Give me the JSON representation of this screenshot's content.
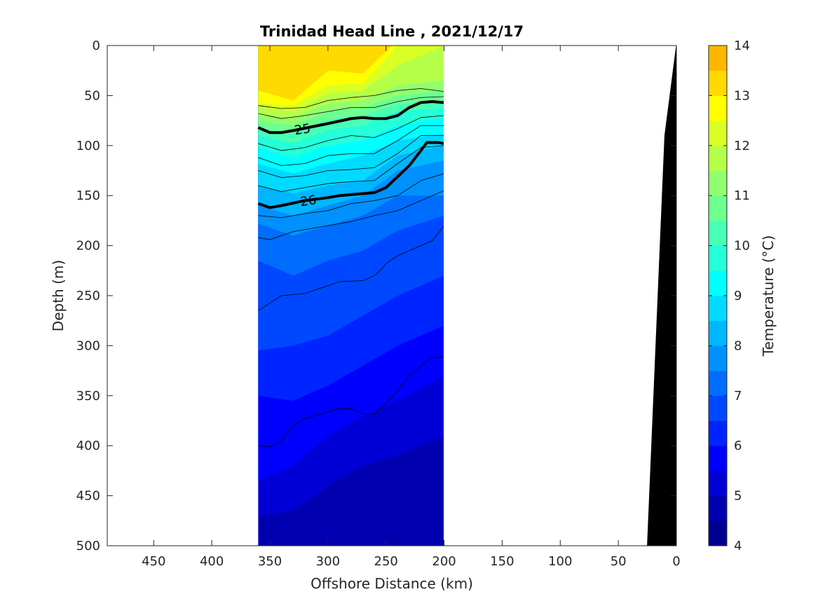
{
  "chart_data": {
    "type": "heatmap",
    "title": "Trinidad Head Line , 2021/12/17",
    "xlabel": "Offshore Distance (km)",
    "ylabel": "Depth (m)",
    "xlim": [
      490,
      0
    ],
    "ylim": [
      0,
      500
    ],
    "x_reversed": true,
    "y_reversed": true,
    "x_ticks": [
      450,
      400,
      350,
      300,
      250,
      200,
      150,
      100,
      50,
      0
    ],
    "y_ticks": [
      0,
      50,
      100,
      150,
      200,
      250,
      300,
      350,
      400,
      450,
      500
    ],
    "grid": false,
    "data_extent_x": [
      360,
      200
    ],
    "colorbar": {
      "label": "Temperature (°C)",
      "range": [
        4,
        14
      ],
      "ticks": [
        4,
        5,
        6,
        7,
        8,
        9,
        10,
        11,
        12,
        13,
        14
      ],
      "step": 0.5,
      "colors": [
        "#000090",
        "#0000b0",
        "#0000d6",
        "#0000ff",
        "#0024ff",
        "#0048ff",
        "#006dff",
        "#0091ff",
        "#00b6ff",
        "#00daff",
        "#00ffff",
        "#24ffda",
        "#48ffb6",
        "#6dff91",
        "#91ff6d",
        "#b6ff48",
        "#daff24",
        "#ffff00",
        "#ffda00",
        "#ffb600",
        "#ff9100",
        "#ff6d00",
        "#ff4800",
        "#ff2400",
        "#ff0000",
        "#da0000",
        "#b60000"
      ]
    },
    "stations": [
      {
        "x": 360,
        "isotherm_depths": {
          "13": 45,
          "12.5": 58,
          "12": 62,
          "11.5": 70,
          "11": 76,
          "10.5": 82,
          "10": 90,
          "9.5": 102,
          "9": 118,
          "8.5": 140,
          "8": 160,
          "7.5": 178,
          "7": 215,
          "6.5": 305,
          "6": 350,
          "5.5": 435,
          "5": 470
        }
      },
      {
        "x": 330,
        "isotherm_depths": {
          "13": 55,
          "12.5": 60,
          "12": 66,
          "11.5": 72,
          "11": 80,
          "10.5": 88,
          "10": 98,
          "9.5": 112,
          "9": 128,
          "8.5": 148,
          "8": 170,
          "7.5": 190,
          "7": 230,
          "6.5": 300,
          "6": 355,
          "5.5": 420,
          "5": 465
        }
      },
      {
        "x": 300,
        "isotherm_depths": {
          "13": 25,
          "12.5": 40,
          "12": 48,
          "11.5": 58,
          "11": 66,
          "10.5": 74,
          "10": 84,
          "9.5": 100,
          "9": 118,
          "8.5": 140,
          "8": 160,
          "7.5": 180,
          "7": 215,
          "6.5": 290,
          "6": 340,
          "5.5": 390,
          "5": 440
        }
      },
      {
        "x": 270,
        "isotherm_depths": {
          "13": 28,
          "12.5": 38,
          "12": 45,
          "11.5": 55,
          "11": 62,
          "10.5": 70,
          "10": 80,
          "9.5": 95,
          "9": 110,
          "8.5": 135,
          "8": 150,
          "7.5": 170,
          "7": 205,
          "6.5": 270,
          "6": 320,
          "5.5": 370,
          "5": 420
        }
      },
      {
        "x": 240,
        "isotherm_depths": {
          "13": -5,
          "12.5": 0,
          "12": 20,
          "11.5": 40,
          "11": 50,
          "10.5": 58,
          "10": 66,
          "9.5": 80,
          "9": 95,
          "8.5": 110,
          "8": 125,
          "7.5": 150,
          "7": 185,
          "6.5": 250,
          "6": 300,
          "5.5": 355,
          "5": 410
        }
      },
      {
        "x": 200,
        "isotherm_depths": {
          "13": -5,
          "12.5": -2,
          "12": 0,
          "11.5": 35,
          "11": 45,
          "10.5": 55,
          "10": 62,
          "9.5": 72,
          "9": 88,
          "8.5": 100,
          "8": 115,
          "7.5": 150,
          "7": 170,
          "6.5": 230,
          "6": 280,
          "5.5": 330,
          "5": 390
        }
      }
    ],
    "contours": [
      {
        "level": 24.5,
        "points": [
          [
            360,
            60
          ],
          [
            340,
            63
          ],
          [
            320,
            62
          ],
          [
            300,
            55
          ],
          [
            280,
            52
          ],
          [
            260,
            50
          ],
          [
            240,
            45
          ],
          [
            220,
            43
          ],
          [
            200,
            46
          ]
        ]
      },
      {
        "level": 24.75,
        "points": [
          [
            360,
            68
          ],
          [
            340,
            73
          ],
          [
            320,
            70
          ],
          [
            300,
            66
          ],
          [
            280,
            62
          ],
          [
            260,
            62
          ],
          [
            240,
            56
          ],
          [
            220,
            52
          ],
          [
            200,
            51
          ]
        ]
      },
      {
        "level": 25,
        "label": "25",
        "bold": true,
        "points": [
          [
            360,
            82
          ],
          [
            350,
            87
          ],
          [
            340,
            87
          ],
          [
            330,
            85
          ],
          [
            300,
            78
          ],
          [
            280,
            73
          ],
          [
            270,
            72
          ],
          [
            260,
            73
          ],
          [
            250,
            73
          ],
          [
            240,
            70
          ],
          [
            230,
            62
          ],
          [
            220,
            57
          ],
          [
            210,
            56
          ],
          [
            200,
            57
          ]
        ]
      },
      {
        "level": 25.2,
        "points": [
          [
            360,
            98
          ],
          [
            340,
            105
          ],
          [
            320,
            102
          ],
          [
            300,
            95
          ],
          [
            280,
            90
          ],
          [
            260,
            92
          ],
          [
            240,
            83
          ],
          [
            220,
            72
          ],
          [
            200,
            70
          ]
        ]
      },
      {
        "level": 25.4,
        "points": [
          [
            360,
            112
          ],
          [
            340,
            120
          ],
          [
            320,
            118
          ],
          [
            300,
            110
          ],
          [
            280,
            108
          ],
          [
            260,
            108
          ],
          [
            240,
            95
          ],
          [
            220,
            80
          ],
          [
            200,
            80
          ]
        ]
      },
      {
        "level": 25.6,
        "points": [
          [
            360,
            125
          ],
          [
            340,
            132
          ],
          [
            320,
            130
          ],
          [
            300,
            125
          ],
          [
            280,
            124
          ],
          [
            260,
            122
          ],
          [
            240,
            108
          ],
          [
            220,
            90
          ],
          [
            200,
            90
          ]
        ]
      },
      {
        "level": 25.8,
        "points": [
          [
            360,
            140
          ],
          [
            340,
            146
          ],
          [
            320,
            142
          ],
          [
            300,
            138
          ],
          [
            280,
            136
          ],
          [
            260,
            135
          ],
          [
            240,
            118
          ],
          [
            220,
            102
          ],
          [
            200,
            100
          ]
        ]
      },
      {
        "level": 26,
        "label": "26",
        "bold": true,
        "points": [
          [
            360,
            158
          ],
          [
            350,
            162
          ],
          [
            340,
            160
          ],
          [
            320,
            155
          ],
          [
            300,
            152
          ],
          [
            290,
            150
          ],
          [
            270,
            148
          ],
          [
            260,
            147
          ],
          [
            250,
            142
          ],
          [
            240,
            131
          ],
          [
            230,
            120
          ],
          [
            220,
            105
          ],
          [
            215,
            97
          ],
          [
            205,
            97
          ],
          [
            200,
            98
          ]
        ]
      },
      {
        "level": 26.2,
        "points": [
          [
            360,
            170
          ],
          [
            340,
            172
          ],
          [
            320,
            168
          ],
          [
            300,
            165
          ],
          [
            280,
            158
          ],
          [
            260,
            155
          ],
          [
            240,
            150
          ],
          [
            220,
            135
          ],
          [
            200,
            128
          ]
        ]
      },
      {
        "level": 26.4,
        "points": [
          [
            360,
            192
          ],
          [
            350,
            194
          ],
          [
            330,
            186
          ],
          [
            300,
            180
          ],
          [
            280,
            176
          ],
          [
            260,
            170
          ],
          [
            240,
            165
          ],
          [
            220,
            155
          ],
          [
            200,
            145
          ]
        ]
      },
      {
        "level": 26.5,
        "points": [
          [
            360,
            265
          ],
          [
            340,
            250
          ],
          [
            320,
            248
          ],
          [
            300,
            240
          ],
          [
            290,
            236
          ],
          [
            270,
            235
          ],
          [
            260,
            230
          ],
          [
            255,
            225
          ],
          [
            250,
            218
          ],
          [
            240,
            210
          ],
          [
            220,
            200
          ],
          [
            210,
            195
          ],
          [
            200,
            180
          ]
        ]
      },
      {
        "level": 26.7,
        "points": [
          [
            360,
            400
          ],
          [
            350,
            401
          ],
          [
            340,
            395
          ],
          [
            330,
            380
          ],
          [
            320,
            373
          ],
          [
            300,
            366
          ],
          [
            290,
            363
          ],
          [
            280,
            363
          ],
          [
            270,
            368
          ],
          [
            260,
            368
          ],
          [
            250,
            358
          ],
          [
            240,
            345
          ],
          [
            230,
            330
          ],
          [
            220,
            320
          ],
          [
            210,
            312
          ],
          [
            200,
            311
          ]
        ]
      }
    ],
    "bathymetry": {
      "points": [
        [
          0,
          0
        ],
        [
          10,
          90
        ],
        [
          25,
          500
        ],
        [
          0,
          500
        ]
      ],
      "color": "#000000"
    }
  }
}
